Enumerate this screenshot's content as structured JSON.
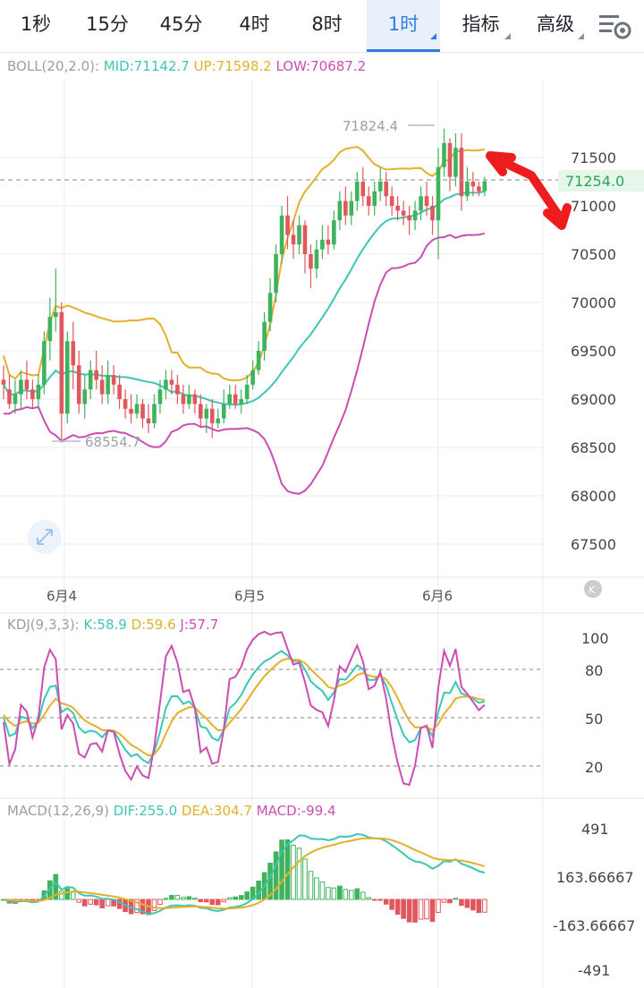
{
  "tabs": [
    {
      "label": "1秒",
      "active": false,
      "dropdown": false
    },
    {
      "label": "15分",
      "active": false,
      "dropdown": false
    },
    {
      "label": "45分",
      "active": false,
      "dropdown": false
    },
    {
      "label": "4时",
      "active": false,
      "dropdown": false
    },
    {
      "label": "8时",
      "active": false,
      "dropdown": false
    },
    {
      "label": "1时",
      "active": true,
      "dropdown": true
    },
    {
      "label": "指标",
      "active": false,
      "dropdown": true
    },
    {
      "label": "高级",
      "active": false,
      "dropdown": true
    }
  ],
  "settings_icon": "chart-settings-icon",
  "colors": {
    "up": "#e0575e",
    "down": "#3fb25c",
    "mid": "#3cc6b5",
    "upper": "#e4b02c",
    "lower": "#cc4db2",
    "grid": "#e9ebee",
    "text": "#9aa0a6",
    "accent": "#2f7de1",
    "arrow": "#ee1d1d"
  },
  "boll": {
    "header": "BOLL(20,2.0):",
    "mid_label": "MID:71142.7",
    "up_label": "UP:71598.2",
    "low_label": "LOW:70687.2"
  },
  "kdj": {
    "header": "KDJ(9,3,3):",
    "k_label": "K:58.9",
    "d_label": "D:59.6",
    "j_label": "J:57.7"
  },
  "macd": {
    "header": "MACD(12,26,9)",
    "dif_label": "DIF:255.0",
    "dea_label": "DEA:304.7",
    "macd_label": "MACD:-99.4"
  },
  "price_axis": [
    "71500",
    "71000",
    "70500",
    "70000",
    "69500",
    "69000",
    "68500",
    "68000",
    "67500"
  ],
  "current_price": "71254.0",
  "high_marker": "71824.4",
  "low_marker": "68554.7",
  "kdj_axis": [
    "100",
    "80",
    "50",
    "20"
  ],
  "macd_axis": [
    "491",
    "163.66667",
    "-163.66667",
    "-491"
  ],
  "date_labels": [
    "6月4",
    "6月5",
    "6月6"
  ],
  "chart_data": {
    "type": "candlestick",
    "y_range": [
      67200,
      72100
    ],
    "candles": [
      [
        69200,
        69150,
        69350,
        69000
      ],
      [
        69100,
        68950,
        69250,
        68900
      ],
      [
        68950,
        69050,
        69200,
        68850
      ],
      [
        69050,
        69200,
        69300,
        68900
      ],
      [
        69200,
        69100,
        69400,
        69000
      ],
      [
        69100,
        69000,
        69200,
        68900
      ],
      [
        69000,
        69150,
        69250,
        68900
      ],
      [
        69150,
        69600,
        69700,
        69050
      ],
      [
        69600,
        69850,
        70050,
        69400
      ],
      [
        69850,
        69900,
        70350,
        69700
      ],
      [
        69900,
        68850,
        70000,
        68550
      ],
      [
        68850,
        69600,
        69700,
        68750
      ],
      [
        69600,
        69350,
        69800,
        69100
      ],
      [
        69350,
        68950,
        69500,
        68850
      ],
      [
        68950,
        69100,
        69250,
        68800
      ],
      [
        69100,
        69300,
        69400,
        69000
      ],
      [
        69300,
        69200,
        69500,
        69100
      ],
      [
        69200,
        69050,
        69350,
        68950
      ],
      [
        69050,
        69250,
        69400,
        68950
      ],
      [
        69250,
        69150,
        69350,
        69050
      ],
      [
        69150,
        69000,
        69250,
        68900
      ],
      [
        69000,
        68900,
        69100,
        68800
      ],
      [
        68900,
        68850,
        69050,
        68750
      ],
      [
        68850,
        68950,
        69050,
        68800
      ],
      [
        68950,
        68800,
        69000,
        68700
      ],
      [
        68800,
        68750,
        68950,
        68650
      ],
      [
        68750,
        68950,
        69050,
        68700
      ],
      [
        68950,
        69100,
        69200,
        68850
      ],
      [
        69100,
        69200,
        69300,
        69000
      ],
      [
        69200,
        69150,
        69300,
        69050
      ],
      [
        69150,
        69050,
        69250,
        68950
      ],
      [
        69050,
        68950,
        69150,
        68850
      ],
      [
        68950,
        69050,
        69150,
        68900
      ],
      [
        69050,
        68950,
        69100,
        68850
      ],
      [
        68950,
        68800,
        69050,
        68700
      ],
      [
        68800,
        68900,
        68950,
        68650
      ],
      [
        68900,
        68750,
        69000,
        68600
      ],
      [
        68750,
        68800,
        68900,
        68700
      ],
      [
        68800,
        68950,
        69100,
        68750
      ],
      [
        68950,
        69050,
        69150,
        68900
      ],
      [
        69050,
        68950,
        69150,
        68900
      ],
      [
        68950,
        69000,
        69100,
        68850
      ],
      [
        69000,
        69150,
        69250,
        68950
      ],
      [
        69150,
        69300,
        69400,
        69100
      ],
      [
        69300,
        69500,
        69600,
        69250
      ],
      [
        69500,
        69800,
        69900,
        69400
      ],
      [
        69800,
        70100,
        70250,
        69700
      ],
      [
        70100,
        70500,
        70600,
        70000
      ],
      [
        70500,
        70900,
        71000,
        70400
      ],
      [
        70900,
        70700,
        71100,
        70550
      ],
      [
        70700,
        70600,
        70850,
        70450
      ],
      [
        70600,
        70800,
        70900,
        70500
      ],
      [
        70800,
        70500,
        70850,
        70300
      ],
      [
        70500,
        70350,
        70600,
        70150
      ],
      [
        70350,
        70550,
        70650,
        70250
      ],
      [
        70550,
        70650,
        70800,
        70450
      ],
      [
        70650,
        70600,
        70800,
        70500
      ],
      [
        70600,
        70850,
        70950,
        70550
      ],
      [
        70850,
        71050,
        71150,
        70750
      ],
      [
        71050,
        70900,
        71200,
        70800
      ],
      [
        70900,
        71050,
        71150,
        70800
      ],
      [
        71050,
        71250,
        71350,
        70950
      ],
      [
        71250,
        71100,
        71400,
        71000
      ],
      [
        71100,
        71000,
        71200,
        70900
      ],
      [
        71000,
        71150,
        71250,
        70900
      ],
      [
        71150,
        71250,
        71400,
        71050
      ],
      [
        71250,
        71100,
        71350,
        71000
      ],
      [
        71100,
        71000,
        71200,
        70900
      ],
      [
        71000,
        70950,
        71100,
        70850
      ],
      [
        70950,
        70900,
        71050,
        70800
      ],
      [
        70900,
        70850,
        71000,
        70700
      ],
      [
        70850,
        70950,
        71050,
        70750
      ],
      [
        70950,
        71100,
        71200,
        70850
      ],
      [
        71100,
        71000,
        71250,
        70900
      ],
      [
        71000,
        70850,
        71100,
        70700
      ],
      [
        70850,
        71400,
        71600,
        70450
      ],
      [
        71400,
        71650,
        71800,
        71300
      ],
      [
        71650,
        71300,
        71700,
        71150
      ],
      [
        71300,
        71600,
        71750,
        71200
      ],
      [
        71600,
        71100,
        71750,
        70950
      ],
      [
        71100,
        71250,
        71400,
        71050
      ],
      [
        71250,
        71200,
        71350,
        71100
      ],
      [
        71200,
        71150,
        71250,
        71100
      ],
      [
        71150,
        71254,
        71300,
        71100
      ]
    ]
  }
}
